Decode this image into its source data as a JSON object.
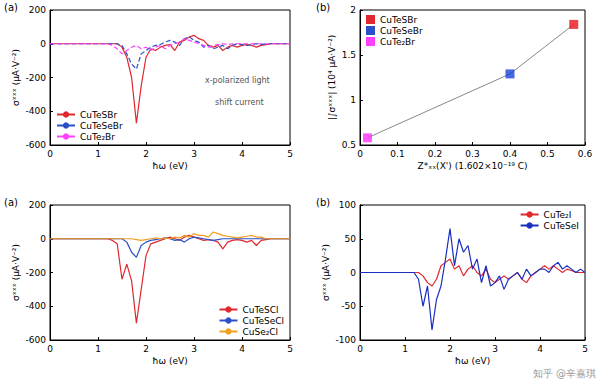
{
  "chart_data": [
    {
      "type": "line",
      "title": "(a)",
      "x_label": "ħω (eV)",
      "y_label": "σˣˣˣ (μA·V⁻²)",
      "x": [
        0,
        0.1,
        0.2,
        0.3,
        0.4,
        0.5,
        0.6,
        0.7,
        0.8,
        0.9,
        1,
        1.1,
        1.2,
        1.3,
        1.4,
        1.5,
        1.6,
        1.7,
        1.8,
        1.9,
        2,
        2.1,
        2.2,
        2.3,
        2.4,
        2.5,
        2.6,
        2.7,
        2.8,
        2.9,
        3,
        3.1,
        3.2,
        3.3,
        3.4,
        3.5,
        3.6,
        3.7,
        3.8,
        3.9,
        4,
        4.1,
        4.2,
        4.3,
        4.4,
        4.5,
        4.6,
        4.7,
        4.8,
        4.9,
        5
      ],
      "xlim": [
        0,
        5
      ],
      "xticks": [
        0,
        1,
        2,
        3,
        4,
        5
      ],
      "ylim": [
        -600,
        200
      ],
      "yticks": [
        -600,
        -400,
        -200,
        0,
        200
      ],
      "grid": false,
      "legend": "lower left",
      "annotations": [
        "x-polarized light",
        "shift current"
      ],
      "series": [
        {
          "name": "CuTeSBr",
          "color": "#e0282e",
          "line_style": "solid",
          "values": [
            0,
            0,
            0,
            0,
            0,
            0,
            0,
            0,
            0,
            0,
            0,
            0,
            0,
            0,
            0,
            -20,
            -80,
            -200,
            -470,
            -250,
            -80,
            -30,
            -40,
            -20,
            -10,
            -5,
            -40,
            10,
            20,
            40,
            50,
            30,
            20,
            -10,
            -20,
            -10,
            -40,
            -20,
            -10,
            -20,
            -10,
            -5,
            -10,
            -20,
            -10,
            -5,
            0,
            0,
            0,
            0,
            0
          ]
        },
        {
          "name": "CuTeSeBr",
          "color": "#2b50c8",
          "line_style": "dashed",
          "values": [
            0,
            0,
            0,
            0,
            0,
            0,
            0,
            0,
            0,
            0,
            0,
            0,
            0,
            0,
            0,
            -10,
            -60,
            -120,
            -150,
            -60,
            -40,
            -20,
            -10,
            -5,
            10,
            20,
            10,
            -10,
            30,
            40,
            20,
            10,
            -20,
            -10,
            -30,
            -20,
            -10,
            -30,
            -10,
            0,
            -5,
            -10,
            -5,
            0,
            -5,
            0,
            0,
            0,
            0,
            0,
            0
          ]
        },
        {
          "name": "CuTe₂Br",
          "color": "#ff40ff",
          "line_style": "dashed",
          "values": [
            0,
            0,
            0,
            0,
            0,
            0,
            0,
            0,
            0,
            0,
            0,
            0,
            0,
            -10,
            -30,
            -60,
            -40,
            -20,
            -10,
            -30,
            -20,
            -40,
            -20,
            -10,
            -30,
            -10,
            0,
            10,
            30,
            20,
            10,
            0,
            -10,
            -20,
            -10,
            -5,
            0,
            -5,
            0,
            0,
            0,
            0,
            0,
            0,
            0,
            0,
            0,
            0,
            0,
            0,
            0
          ]
        }
      ]
    },
    {
      "type": "scatter",
      "title": "(b)",
      "x_label": "Z*ₓₓ(X') (1.602×10⁻¹⁹ C)",
      "y_label": "|∫σˣˣˣ| (10⁴ μA·V⁻²)",
      "xlim": [
        0,
        0.6
      ],
      "xticks": [
        0,
        0.1,
        0.2,
        0.3,
        0.4,
        0.5,
        0.6
      ],
      "ylim": [
        0.5,
        2
      ],
      "yticks": [
        0.5,
        1,
        1.5,
        2
      ],
      "grid": false,
      "legend": "upper left",
      "line_style": "solid",
      "color": "#888888",
      "series": [
        {
          "name": "CuTeSBr",
          "color": "#e8141c",
          "marker": "square",
          "x": [
            0.57
          ],
          "values": [
            1.84
          ]
        },
        {
          "name": "CuTeSeBr",
          "color": "#1a44d8",
          "marker": "square",
          "x": [
            0.4
          ],
          "values": [
            1.29
          ]
        },
        {
          "name": "CuTe₂Br",
          "color": "#ff33ff",
          "marker": "square",
          "x": [
            0.02
          ],
          "values": [
            0.58
          ]
        }
      ]
    },
    {
      "type": "line",
      "title": "(a)",
      "x_label": "ħω (eV)",
      "y_label": "σˣˣˣ (μA·V⁻²)",
      "x": [
        0,
        0.1,
        0.2,
        0.3,
        0.4,
        0.5,
        0.6,
        0.7,
        0.8,
        0.9,
        1,
        1.1,
        1.2,
        1.3,
        1.4,
        1.5,
        1.6,
        1.7,
        1.8,
        1.9,
        2,
        2.1,
        2.2,
        2.3,
        2.4,
        2.5,
        2.6,
        2.7,
        2.8,
        2.9,
        3,
        3.1,
        3.2,
        3.3,
        3.4,
        3.5,
        3.6,
        3.7,
        3.8,
        3.9,
        4,
        4.1,
        4.2,
        4.3,
        4.4,
        4.5,
        4.6,
        4.7,
        4.8,
        4.9,
        5
      ],
      "xlim": [
        0,
        5
      ],
      "xticks": [
        0,
        1,
        2,
        3,
        4,
        5
      ],
      "ylim": [
        -600,
        200
      ],
      "yticks": [
        -600,
        -400,
        -200,
        0,
        200
      ],
      "grid": false,
      "legend": "lower right",
      "series": [
        {
          "name": "CuTeSCl",
          "color": "#e0282e",
          "line_style": "solid",
          "values": [
            0,
            0,
            0,
            0,
            0,
            0,
            0,
            0,
            0,
            0,
            0,
            0,
            0,
            -10,
            -30,
            -240,
            -150,
            -250,
            -500,
            -300,
            -100,
            -30,
            -20,
            -10,
            0,
            10,
            0,
            -10,
            10,
            20,
            10,
            0,
            -10,
            -5,
            -10,
            -20,
            -60,
            -20,
            -10,
            -5,
            -10,
            -20,
            -10,
            -40,
            -10,
            -5,
            0,
            0,
            0,
            0,
            0
          ]
        },
        {
          "name": "CuTeSeCl",
          "color": "#2b50c8",
          "line_style": "solid",
          "values": [
            0,
            0,
            0,
            0,
            0,
            0,
            0,
            0,
            0,
            0,
            0,
            0,
            0,
            0,
            0,
            0,
            -20,
            -80,
            -110,
            -40,
            -20,
            -10,
            -5,
            0,
            5,
            0,
            -10,
            -5,
            -20,
            0,
            10,
            5,
            0,
            -5,
            -10,
            -5,
            0,
            0,
            0,
            0,
            0,
            0,
            0,
            0,
            0,
            0,
            0,
            0,
            0,
            0,
            0
          ]
        },
        {
          "name": "CuSe₂Cl",
          "color": "#f0a020",
          "line_style": "solid",
          "values": [
            0,
            0,
            0,
            0,
            0,
            0,
            0,
            0,
            0,
            0,
            0,
            0,
            0,
            0,
            0,
            0,
            0,
            0,
            -5,
            -10,
            -5,
            0,
            5,
            0,
            5,
            0,
            10,
            5,
            20,
            10,
            30,
            20,
            20,
            10,
            40,
            30,
            20,
            15,
            10,
            5,
            10,
            15,
            20,
            10,
            10,
            0,
            0,
            0,
            0,
            0,
            0
          ]
        }
      ]
    },
    {
      "type": "line",
      "title": "(b)",
      "x_label": "ħω (eV)",
      "y_label": "σˣˣˣ (μA·V⁻²)",
      "x": [
        0,
        0.1,
        0.2,
        0.3,
        0.4,
        0.5,
        0.6,
        0.7,
        0.8,
        0.9,
        1,
        1.1,
        1.2,
        1.3,
        1.4,
        1.5,
        1.6,
        1.7,
        1.8,
        1.9,
        2,
        2.1,
        2.2,
        2.3,
        2.4,
        2.5,
        2.6,
        2.7,
        2.8,
        2.9,
        3,
        3.1,
        3.2,
        3.3,
        3.4,
        3.5,
        3.6,
        3.7,
        3.8,
        3.9,
        4,
        4.1,
        4.2,
        4.3,
        4.4,
        4.5,
        4.6,
        4.7,
        4.8,
        4.9,
        5
      ],
      "xlim": [
        0,
        5
      ],
      "xticks": [
        0,
        1,
        2,
        3,
        4,
        5
      ],
      "ylim": [
        -100,
        100
      ],
      "yticks": [
        -100,
        -50,
        0,
        50,
        100
      ],
      "grid": false,
      "legend": "upper right",
      "series": [
        {
          "name": "CuTe₂I",
          "color": "#e0282e",
          "line_style": "solid",
          "values": [
            0,
            0,
            0,
            0,
            0,
            0,
            0,
            0,
            0,
            0,
            0,
            0,
            0,
            0,
            -5,
            -15,
            -20,
            -10,
            10,
            15,
            20,
            5,
            10,
            -5,
            5,
            10,
            0,
            -5,
            5,
            -10,
            -15,
            -10,
            -5,
            -10,
            -5,
            0,
            -10,
            -15,
            -5,
            0,
            5,
            10,
            5,
            10,
            5,
            0,
            5,
            3,
            0,
            0,
            0
          ]
        },
        {
          "name": "CuTeSeI",
          "color": "#1a2fc0",
          "line_style": "solid",
          "values": [
            0,
            0,
            0,
            0,
            0,
            0,
            0,
            0,
            0,
            0,
            0,
            0,
            0,
            -10,
            -50,
            -20,
            -85,
            -40,
            -20,
            20,
            65,
            10,
            50,
            30,
            40,
            5,
            20,
            -15,
            10,
            -20,
            -15,
            -5,
            -25,
            -10,
            -5,
            0,
            -10,
            5,
            -5,
            0,
            5,
            5,
            0,
            10,
            15,
            5,
            10,
            5,
            0,
            5,
            0
          ]
        }
      ]
    }
  ],
  "watermark": "知乎 @辛嘉琪"
}
